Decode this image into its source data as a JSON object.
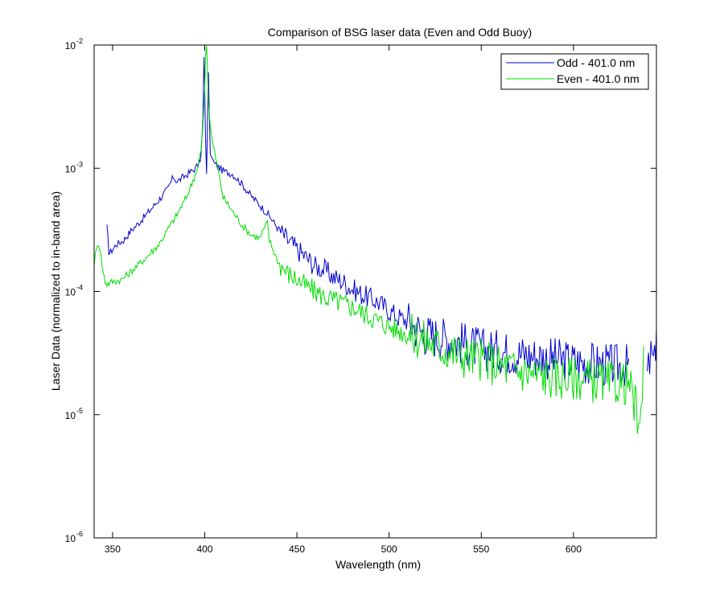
{
  "chart_data": {
    "type": "line",
    "title": "Comparison of BSG laser data (Even and Odd Buoy)",
    "xlabel": "Wavelength (nm)",
    "ylabel": "Laser Data (normalized to in-band area)",
    "xlim": [
      340,
      645
    ],
    "ylim": [
      1e-06,
      0.01
    ],
    "yscale": "log",
    "grid": false,
    "legend_position": "top-right",
    "x_ticks": [
      350,
      400,
      450,
      500,
      550,
      600
    ],
    "x_tick_labels": [
      "350",
      "400",
      "450",
      "500",
      "550",
      "600"
    ],
    "y_tick_labels": [
      {
        "base": "10",
        "exp": "-6",
        "value": 1e-06
      },
      {
        "base": "10",
        "exp": "-5",
        "value": 1e-05
      },
      {
        "base": "10",
        "exp": "-4",
        "value": 0.0001
      },
      {
        "base": "10",
        "exp": "-3",
        "value": 0.001
      },
      {
        "base": "10",
        "exp": "-2",
        "value": 0.01
      }
    ],
    "series": [
      {
        "name": "Odd - 401.0 nm",
        "color": "#0000cc",
        "x": [
          347,
          348,
          349,
          352,
          356,
          360,
          365,
          370,
          375,
          380,
          383,
          385,
          390,
          395,
          397,
          398,
          399,
          399.6,
          400,
          400.4,
          401,
          402,
          403,
          405,
          410,
          415,
          420,
          425,
          430,
          435,
          440,
          445,
          450,
          455,
          460,
          465,
          470,
          475,
          480,
          485,
          490,
          495,
          500,
          505,
          510,
          515,
          520,
          530,
          540,
          550,
          560,
          570,
          580,
          590,
          600,
          610,
          620,
          630,
          632,
          635,
          640,
          642,
          644,
          645
        ],
        "y": [
          0.00033,
          0.00021,
          0.00021,
          0.00024,
          0.00026,
          0.00031,
          0.00037,
          0.00045,
          0.00055,
          0.00068,
          0.00085,
          0.00078,
          0.00088,
          0.001,
          0.0011,
          0.0013,
          0.0025,
          0.008,
          0.0045,
          0.0018,
          0.0009,
          0.006,
          0.0013,
          0.0011,
          0.00095,
          0.0009,
          0.00075,
          0.0006,
          0.0005,
          0.00041,
          0.00032,
          0.00026,
          0.00022,
          0.00019,
          0.00016,
          0.00015,
          0.00013,
          0.00012,
          0.000105,
          9.5e-05,
          8.8e-05,
          8e-05,
          7e-05,
          6.2e-05,
          5.8e-05,
          5e-05,
          4.5e-05,
          4.2e-05,
          3.8e-05,
          3.4e-05,
          3.3e-05,
          3.1e-05,
          3e-05,
          2.8e-05,
          2.7e-05,
          2.6e-05,
          2.5e-05,
          2.5e-05,
          null,
          null,
          2e-05,
          3e-05,
          2.5e-05,
          6e-05
        ]
      },
      {
        "name": "Even - 401.0 nm",
        "color": "#00dd00",
        "x": [
          340,
          342,
          343,
          345,
          346,
          347,
          350,
          355,
          360,
          365,
          370,
          375,
          380,
          385,
          390,
          393,
          396,
          398,
          399,
          400,
          400.5,
          401,
          401.5,
          402,
          403,
          404,
          406,
          408,
          410,
          415,
          420,
          425,
          430,
          432,
          434,
          435,
          437,
          440,
          445,
          450,
          455,
          460,
          465,
          470,
          480,
          490,
          500,
          510,
          520,
          530,
          540,
          550,
          560,
          570,
          580,
          590,
          600,
          610,
          620,
          630,
          634,
          636,
          638
        ],
        "y": [
          0.00017,
          0.00025,
          0.00023,
          0.00014,
          0.00012,
          0.000115,
          0.00012,
          0.000125,
          0.000145,
          0.00017,
          0.0002,
          0.00024,
          0.00032,
          0.00042,
          0.00058,
          0.00075,
          0.001,
          0.0014,
          0.0022,
          0.0045,
          0.0085,
          0.0098,
          0.0065,
          0.0035,
          0.0022,
          0.0017,
          0.0012,
          0.00085,
          0.00058,
          0.00045,
          0.00035,
          0.00029,
          0.00027,
          0.00032,
          0.00036,
          0.00026,
          0.00022,
          0.00017,
          0.00014,
          0.000125,
          0.00011,
          0.0001,
          9e-05,
          8.5e-05,
          7.5e-05,
          6.2e-05,
          5.2e-05,
          4.5e-05,
          4e-05,
          3.4e-05,
          3e-05,
          2.8e-05,
          2.5e-05,
          2.3e-05,
          2.1e-05,
          2e-05,
          2e-05,
          1.9e-05,
          1.8e-05,
          1.8e-05,
          1.1e-05,
          6e-06,
          2.5e-05
        ]
      }
    ]
  }
}
